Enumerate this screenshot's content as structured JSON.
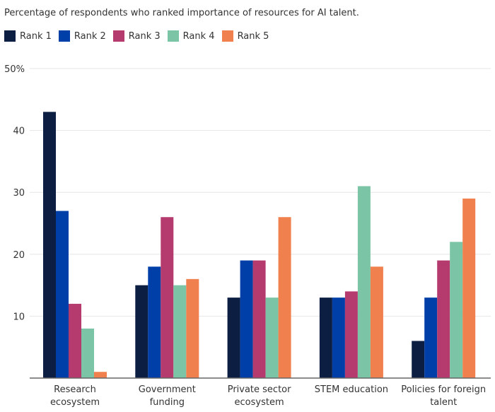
{
  "chart_data": {
    "type": "bar",
    "title": "",
    "subtitle": "Percentage of respondents who ranked importance of resources for AI talent.",
    "xlabel": "",
    "ylabel": "",
    "ylim": [
      0,
      50
    ],
    "yticks": [
      10,
      20,
      30,
      40,
      50
    ],
    "ytick_labels": [
      "10",
      "20",
      "30",
      "40",
      "50%"
    ],
    "grid": true,
    "legend_position": "top-left",
    "categories": [
      [
        "Research",
        "ecosystem"
      ],
      [
        "Government",
        "funding"
      ],
      [
        "Private sector",
        "ecosystem"
      ],
      [
        "STEM education"
      ],
      [
        "Policies for foreign",
        "talent"
      ]
    ],
    "series": [
      {
        "name": "Rank 1",
        "color": "#0c1f42",
        "values": [
          43,
          15,
          13,
          13,
          6
        ]
      },
      {
        "name": "Rank 2",
        "color": "#003ea8",
        "values": [
          27,
          18,
          19,
          13,
          13
        ]
      },
      {
        "name": "Rank 3",
        "color": "#b53a6e",
        "values": [
          12,
          26,
          19,
          14,
          19
        ]
      },
      {
        "name": "Rank 4",
        "color": "#7bc5a6",
        "values": [
          8,
          15,
          13,
          31,
          22
        ]
      },
      {
        "name": "Rank 5",
        "color": "#f0804d",
        "values": [
          1,
          16,
          26,
          18,
          29
        ]
      }
    ]
  }
}
